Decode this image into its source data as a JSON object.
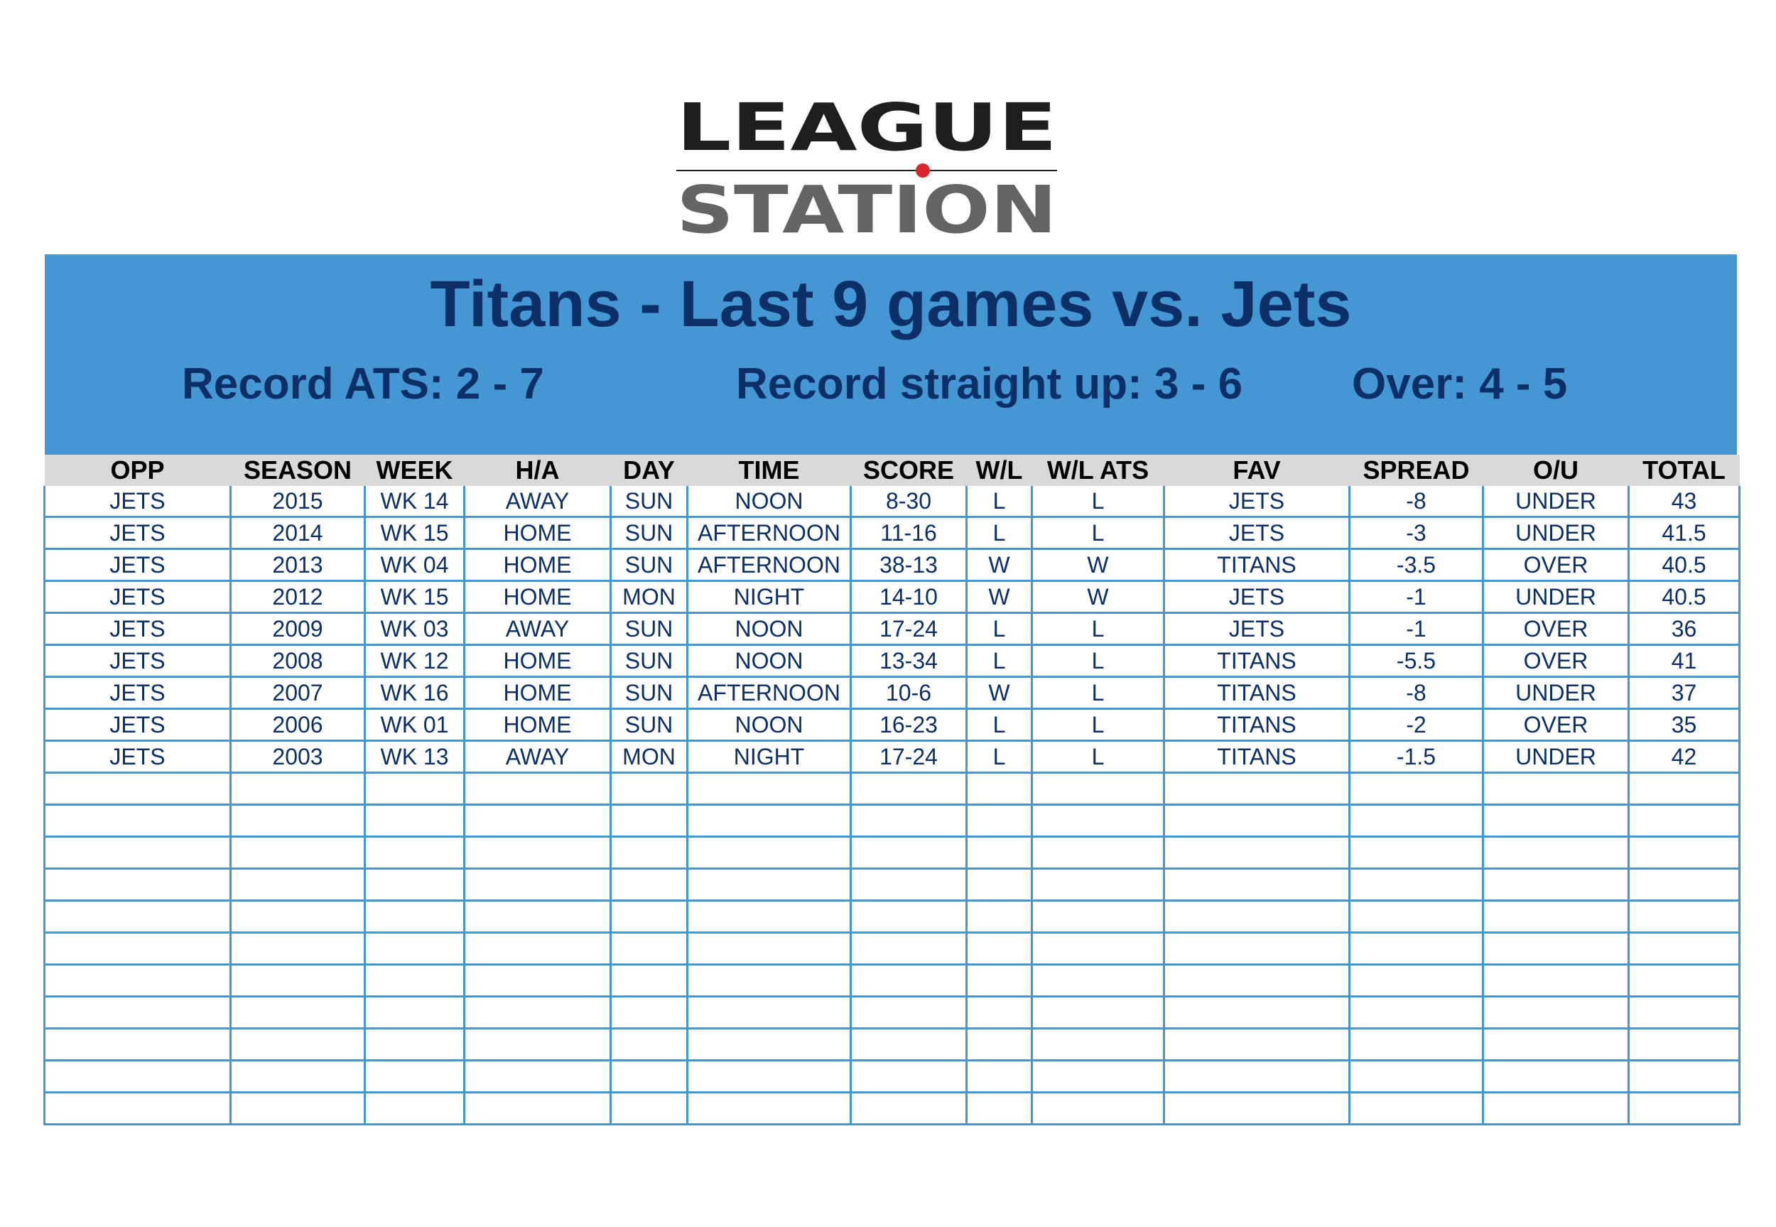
{
  "logo": {
    "line1": "LEAGUE",
    "line2": "STATION",
    "accent_color": "#d9272e",
    "dark_color": "#1e1e1e",
    "grey_color": "#646464"
  },
  "banner": {
    "title": "Titans - Last 9 games vs. Jets",
    "record_ats": "Record ATS: 2 - 7",
    "record_su": "Record straight up: 3 - 6",
    "over": "Over: 4 - 5",
    "background_color": "#4597d3",
    "text_color": "#0b2f66"
  },
  "table": {
    "columns": [
      "OPP",
      "SEASON",
      "WEEK",
      "H/A",
      "DAY",
      "TIME",
      "SCORE",
      "W/L",
      "W/L ATS",
      "FAV",
      "SPREAD",
      "O/U",
      "TOTAL"
    ],
    "rows": [
      [
        "JETS",
        "2015",
        "WK 14",
        "AWAY",
        "SUN",
        "NOON",
        "8-30",
        "L",
        "L",
        "JETS",
        "-8",
        "UNDER",
        "43"
      ],
      [
        "JETS",
        "2014",
        "WK 15",
        "HOME",
        "SUN",
        "AFTERNOON",
        "11-16",
        "L",
        "L",
        "JETS",
        "-3",
        "UNDER",
        "41.5"
      ],
      [
        "JETS",
        "2013",
        "WK 04",
        "HOME",
        "SUN",
        "AFTERNOON",
        "38-13",
        "W",
        "W",
        "TITANS",
        "-3.5",
        "OVER",
        "40.5"
      ],
      [
        "JETS",
        "2012",
        "WK 15",
        "HOME",
        "MON",
        "NIGHT",
        "14-10",
        "W",
        "W",
        "JETS",
        "-1",
        "UNDER",
        "40.5"
      ],
      [
        "JETS",
        "2009",
        "WK 03",
        "AWAY",
        "SUN",
        "NOON",
        "17-24",
        "L",
        "L",
        "JETS",
        "-1",
        "OVER",
        "36"
      ],
      [
        "JETS",
        "2008",
        "WK 12",
        "HOME",
        "SUN",
        "NOON",
        "13-34",
        "L",
        "L",
        "TITANS",
        "-5.5",
        "OVER",
        "41"
      ],
      [
        "JETS",
        "2007",
        "WK 16",
        "HOME",
        "SUN",
        "AFTERNOON",
        "10-6",
        "W",
        "L",
        "TITANS",
        "-8",
        "UNDER",
        "37"
      ],
      [
        "JETS",
        "2006",
        "WK 01",
        "HOME",
        "SUN",
        "NOON",
        "16-23",
        "L",
        "L",
        "TITANS",
        "-2",
        "OVER",
        "35"
      ],
      [
        "JETS",
        "2003",
        "WK 13",
        "AWAY",
        "MON",
        "NIGHT",
        "17-24",
        "L",
        "L",
        "TITANS",
        "-1.5",
        "UNDER",
        "42"
      ]
    ],
    "empty_row_count": 11,
    "header_background": "#d9d9d9",
    "grid_color": "#4597d3"
  }
}
